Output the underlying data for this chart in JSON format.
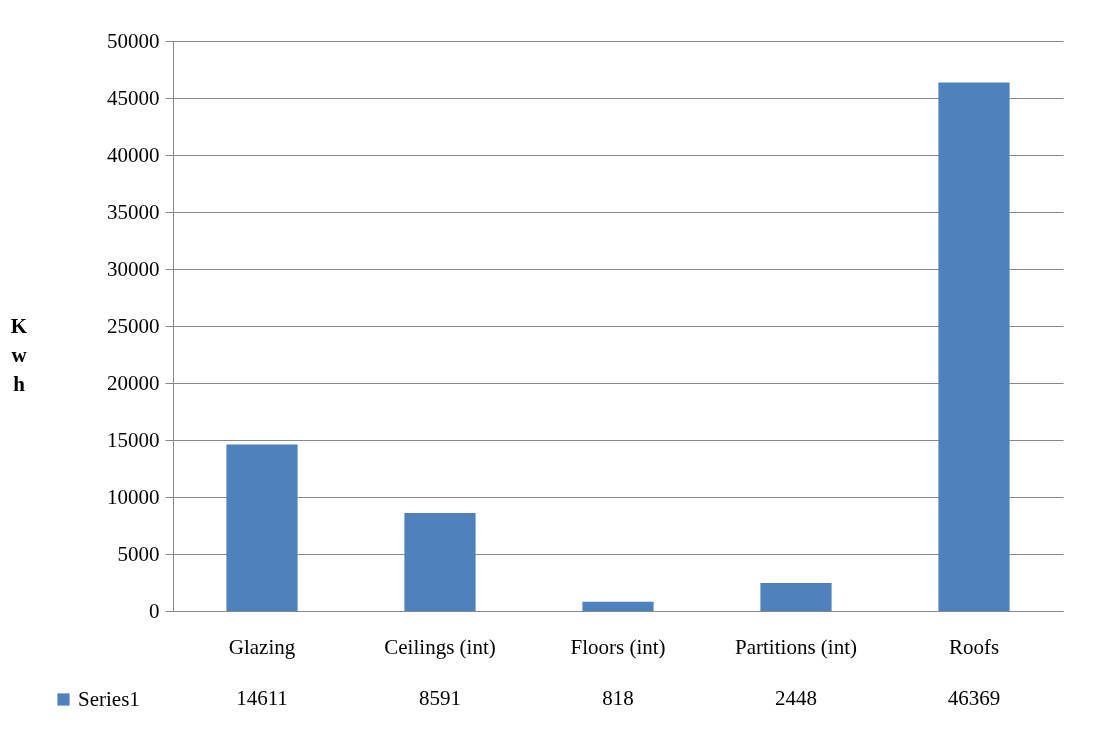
{
  "chart_data": {
    "type": "bar",
    "ylabel": "Kwh",
    "categories": [
      "Glazing",
      "Ceilings (int)",
      "Floors (int)",
      "Partitions (int)",
      "Roofs"
    ],
    "series": [
      {
        "name": "Series1",
        "color": "#4f81bd",
        "values": [
          14611,
          8591,
          818,
          2448,
          46369
        ]
      }
    ],
    "ylim": [
      0,
      50000
    ],
    "yticks": [
      0,
      5000,
      10000,
      15000,
      20000,
      25000,
      30000,
      35000,
      40000,
      45000,
      50000
    ],
    "grid": "y",
    "legend": "bottom left",
    "data_labels": true
  }
}
